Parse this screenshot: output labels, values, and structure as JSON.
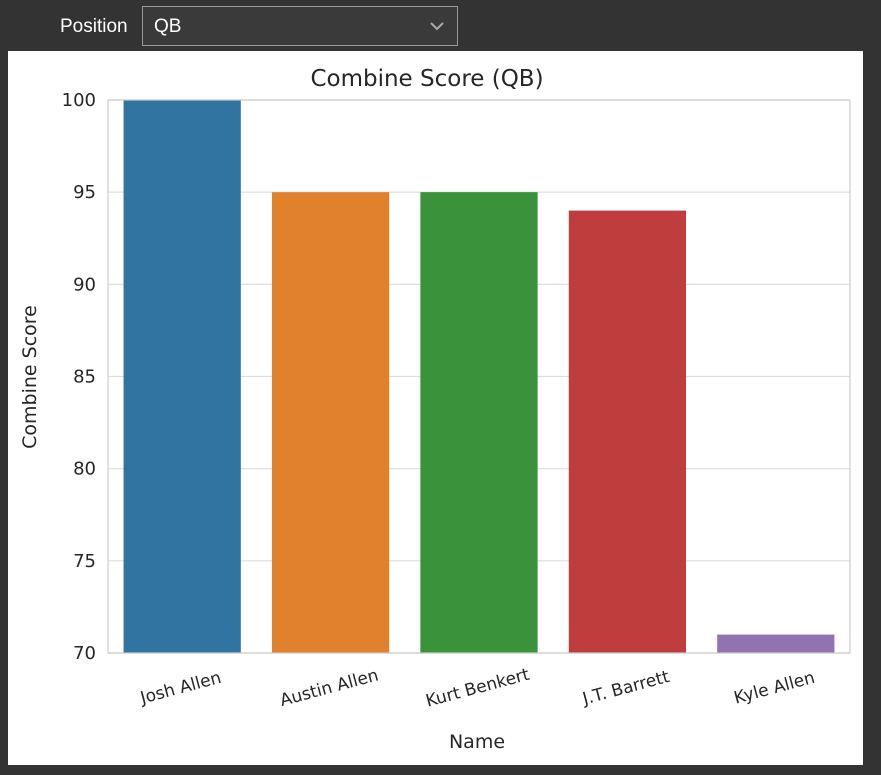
{
  "controls": {
    "position_label": "Position",
    "position_value": "QB"
  },
  "chart_data": {
    "type": "bar",
    "title": "Combine Score (QB)",
    "xlabel": "Name",
    "ylabel": "Combine Score",
    "categories": [
      "Josh Allen",
      "Austin Allen",
      "Kurt Benkert",
      "J.T. Barrett",
      "Kyle Allen"
    ],
    "values": [
      100,
      95,
      95,
      94,
      71
    ],
    "ylim": [
      70,
      100
    ],
    "yticks": [
      70,
      75,
      80,
      85,
      90,
      95,
      100
    ],
    "grid": true,
    "colors": [
      "#3274a1",
      "#e1812c",
      "#3a923a",
      "#c03d3e",
      "#9372b2"
    ]
  }
}
